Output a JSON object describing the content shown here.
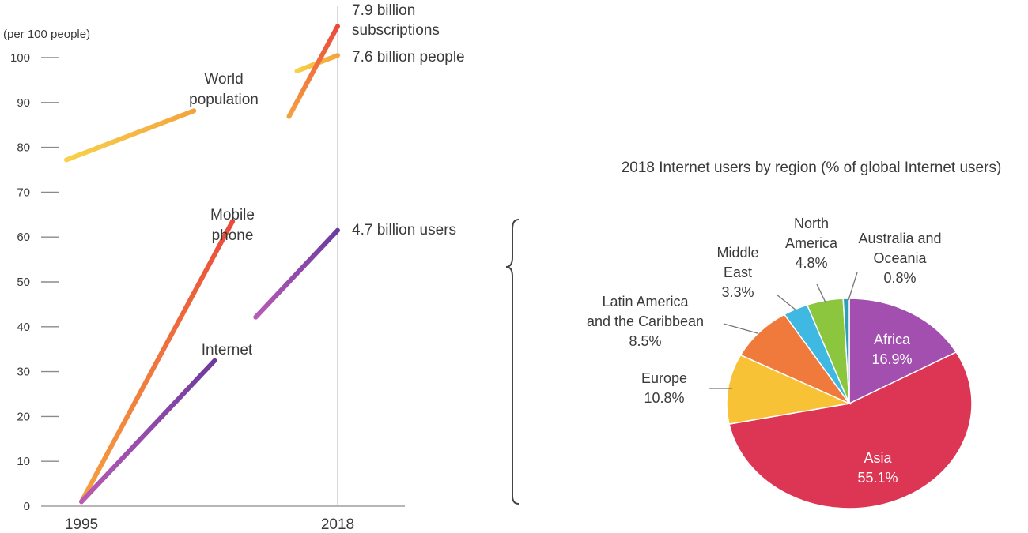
{
  "chart_data": [
    {
      "type": "line",
      "ylabel": "(per 100 people)",
      "ylim": [
        0,
        100
      ],
      "yticks": [
        0,
        10,
        20,
        30,
        40,
        50,
        60,
        70,
        80,
        90,
        100
      ],
      "x_tick_labels": [
        "1995",
        "2018"
      ],
      "series": [
        {
          "name": "World population",
          "label_lines": [
            "World",
            "population"
          ],
          "color": "#f3c13a",
          "points": [
            [
              1995,
              78.5
            ],
            [
              2018,
              100.5
            ]
          ]
        },
        {
          "name": "Mobile phone",
          "label_lines": [
            "Mobile",
            "phone"
          ],
          "color": "#ef6a3b",
          "points": [
            [
              1995,
              1
            ],
            [
              2018,
              107
            ]
          ]
        },
        {
          "name": "Internet",
          "label_lines": [
            "Internet"
          ],
          "color": "#8a3fa8",
          "points": [
            [
              1995,
              1
            ],
            [
              2018,
              61.5
            ]
          ]
        }
      ],
      "end_annotations": [
        {
          "series": "Mobile phone",
          "lines": [
            "7.9 billion",
            "subscriptions"
          ]
        },
        {
          "series": "World population",
          "lines": [
            "7.6 billion people"
          ]
        },
        {
          "series": "Internet",
          "lines": [
            "4.7 billion users"
          ]
        }
      ]
    },
    {
      "type": "pie",
      "title": "2018 Internet users by region (% of global Internet users)",
      "slices": [
        {
          "label": "Africa",
          "value": 16.9,
          "display": "16.9%",
          "color": "#a24fb0"
        },
        {
          "label": "Asia",
          "value": 55.1,
          "display": "55.1%",
          "color": "#dd3655"
        },
        {
          "label": "Europe",
          "value": 10.8,
          "display": "10.8%",
          "color": "#f7c236"
        },
        {
          "label": "Latin America and the Caribbean",
          "label_lines": [
            "Latin America",
            "and the Caribbean"
          ],
          "value": 8.5,
          "display": "8.5%",
          "color": "#ef7a3c"
        },
        {
          "label": "Middle East",
          "label_lines": [
            "Middle",
            "East"
          ],
          "value": 3.3,
          "display": "3.3%",
          "color": "#3fb8e2"
        },
        {
          "label": "North America",
          "label_lines": [
            "North",
            "America"
          ],
          "value": 4.8,
          "display": "4.8%",
          "color": "#8cc63f"
        },
        {
          "label": "Australia and Oceania",
          "label_lines": [
            "Australia and",
            "Oceania"
          ],
          "value": 0.8,
          "display": "0.8%",
          "color": "#2f9fb8"
        }
      ]
    }
  ]
}
